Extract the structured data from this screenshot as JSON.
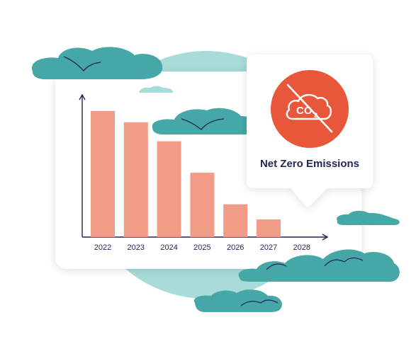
{
  "chart_data": {
    "type": "bar",
    "categories": [
      "2022",
      "2023",
      "2024",
      "2025",
      "2026",
      "2027",
      "2028"
    ],
    "values": [
      100,
      91,
      76,
      51,
      26,
      14,
      0
    ],
    "title": "",
    "xlabel": "",
    "ylabel": "",
    "ylim": [
      0,
      110
    ],
    "grid": false,
    "legend": "none"
  },
  "badge": {
    "label": "Net Zero Emissions",
    "icon": "co2-crossed-cloud-icon",
    "icon_text": "CO",
    "icon_subscript": "2"
  },
  "colors": {
    "bar": "#f19c86",
    "axis": "#1f2557",
    "badge_circle": "#e9573a",
    "cloud": "#45a7a6",
    "background_circle": "#a8dcd9",
    "card": "#ffffff"
  }
}
